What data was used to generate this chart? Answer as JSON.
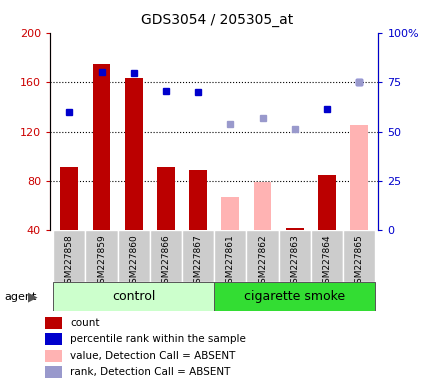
{
  "title": "GDS3054 / 205305_at",
  "samples": [
    "GSM227858",
    "GSM227859",
    "GSM227860",
    "GSM227866",
    "GSM227867",
    "GSM227861",
    "GSM227862",
    "GSM227863",
    "GSM227864",
    "GSM227865"
  ],
  "count_values": [
    91,
    175,
    163,
    91,
    89,
    null,
    null,
    42,
    85,
    null
  ],
  "count_absent_values": [
    null,
    null,
    null,
    null,
    null,
    67,
    79,
    null,
    null,
    125
  ],
  "rank_values": [
    136,
    168,
    167,
    153,
    152,
    null,
    null,
    null,
    138,
    160
  ],
  "rank_absent_values": [
    null,
    null,
    null,
    null,
    null,
    126,
    131,
    122,
    null,
    160
  ],
  "ylim_left": [
    40,
    200
  ],
  "yticks_left": [
    40,
    80,
    120,
    160,
    200
  ],
  "yticks_right": [
    0,
    25,
    50,
    75,
    100
  ],
  "ytick_labels_right": [
    "0",
    "25",
    "50",
    "75",
    "100%"
  ],
  "bar_color_present": "#bb0000",
  "bar_color_absent": "#ffb3b3",
  "rank_color_present": "#0000cc",
  "rank_color_absent": "#9999cc",
  "group_control_label": "control",
  "group_smoke_label": "cigarette smoke",
  "group_control_color": "#ccffcc",
  "group_smoke_color": "#33dd33",
  "sample_box_color": "#cccccc",
  "agent_label": "agent",
  "legend_items": [
    {
      "label": "count",
      "color": "#bb0000"
    },
    {
      "label": "percentile rank within the sample",
      "color": "#0000cc"
    },
    {
      "label": "value, Detection Call = ABSENT",
      "color": "#ffb3b3"
    },
    {
      "label": "rank, Detection Call = ABSENT",
      "color": "#9999cc"
    }
  ]
}
